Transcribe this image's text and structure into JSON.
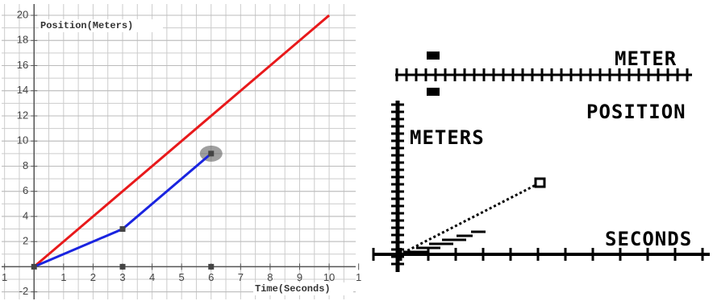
{
  "chart_data": {
    "type": "line",
    "y_label": "Position(Meters)",
    "x_label": "Time(Seconds)",
    "xlim": [
      -1.1,
      10.9
    ],
    "ylim": [
      -2.6,
      20.9
    ],
    "xticks": [
      {
        "value": -1,
        "label": "1"
      },
      1,
      2,
      3,
      4,
      5,
      6,
      7,
      8,
      9,
      10,
      {
        "value": 11,
        "label": "1"
      }
    ],
    "yticks": [
      -2,
      2,
      4,
      6,
      8,
      10,
      12,
      14,
      16,
      18,
      20
    ],
    "grid": true,
    "series": [
      {
        "color": "#e8191b",
        "x": [
          0,
          10
        ],
        "values": [
          0,
          20
        ]
      },
      {
        "color": "#1a24e0",
        "x": [
          0,
          3,
          6
        ],
        "values": [
          0,
          3,
          9
        ],
        "marker": "square"
      },
      {
        "color": "#444444",
        "x": [
          3,
          6
        ],
        "values": [
          0,
          0
        ],
        "marker": "square",
        "line": false
      }
    ],
    "highlight": {
      "x": 6,
      "y": 9
    }
  },
  "display": {
    "labels": [
      "METER",
      "POSITION",
      "METERS",
      "SECONDS"
    ]
  }
}
